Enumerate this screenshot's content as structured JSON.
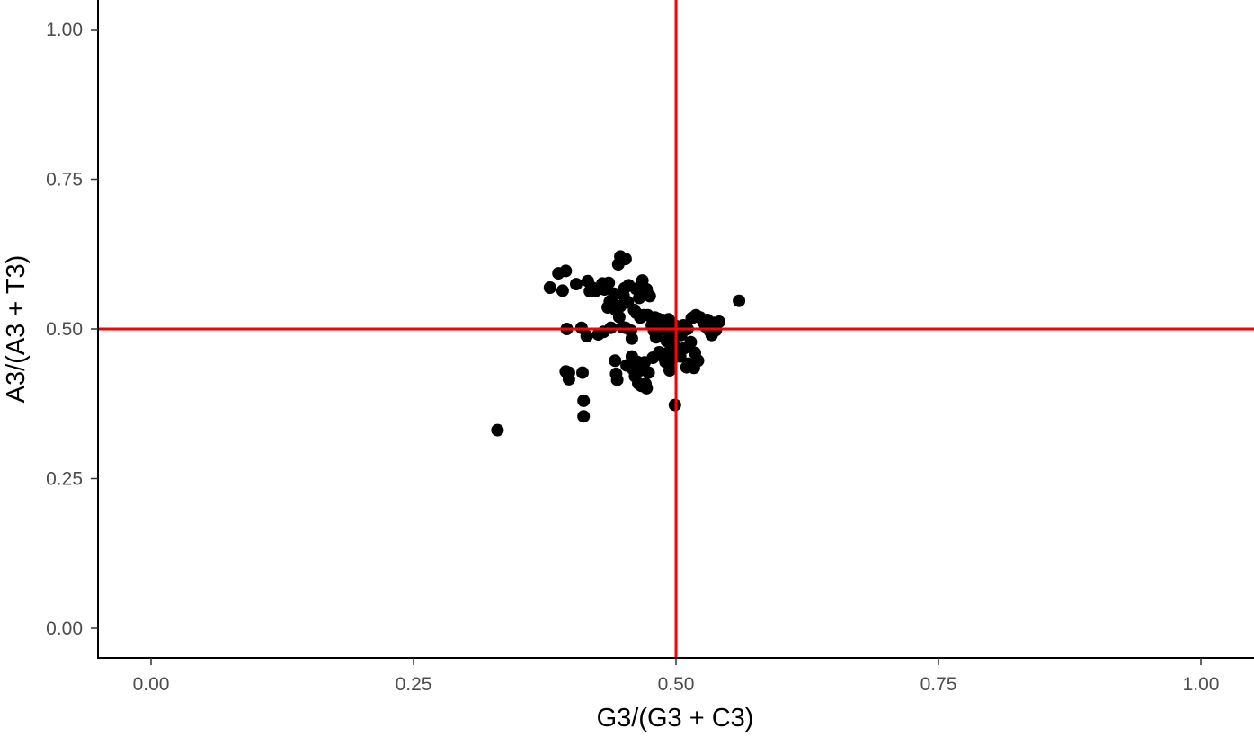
{
  "chart_data": {
    "type": "scatter",
    "title": "",
    "xlabel": "G3/(G3 + C3)",
    "ylabel": "A3/(A3 + T3)",
    "xlim": [
      -0.1,
      1.05
    ],
    "ylim": [
      -0.1,
      1.1
    ],
    "x_ticks": [
      0,
      0.25,
      0.5,
      0.75,
      1
    ],
    "x_tick_labels": [
      "0.00",
      "0.25",
      "0.50",
      "0.75",
      "1.00"
    ],
    "y_ticks": [
      0,
      0.25,
      0.5,
      0.75,
      1
    ],
    "y_tick_labels": [
      "0.00",
      "0.25",
      "0.50",
      "0.75",
      "1.00"
    ],
    "grid": false,
    "legend": "none",
    "point_color": "#000000",
    "reference_line_color": "#ff0000",
    "reference_lines": {
      "vertical_x": 0.5,
      "horizontal_y": 0.5
    },
    "points": [
      [
        0.33,
        0.331
      ],
      [
        0.38,
        0.569
      ],
      [
        0.388,
        0.593
      ],
      [
        0.392,
        0.564
      ],
      [
        0.395,
        0.597
      ],
      [
        0.396,
        0.5
      ],
      [
        0.395,
        0.429
      ],
      [
        0.398,
        0.416
      ],
      [
        0.398,
        0.427
      ],
      [
        0.405,
        0.575
      ],
      [
        0.41,
        0.502
      ],
      [
        0.411,
        0.427
      ],
      [
        0.412,
        0.38
      ],
      [
        0.412,
        0.354
      ],
      [
        0.415,
        0.488
      ],
      [
        0.416,
        0.58
      ],
      [
        0.418,
        0.563
      ],
      [
        0.42,
        0.569
      ],
      [
        0.424,
        0.564
      ],
      [
        0.426,
        0.491
      ],
      [
        0.43,
        0.576
      ],
      [
        0.431,
        0.495
      ],
      [
        0.432,
        0.566
      ],
      [
        0.435,
        0.536
      ],
      [
        0.436,
        0.577
      ],
      [
        0.437,
        0.546
      ],
      [
        0.438,
        0.502
      ],
      [
        0.44,
        0.543
      ],
      [
        0.441,
        0.559
      ],
      [
        0.442,
        0.447
      ],
      [
        0.443,
        0.531
      ],
      [
        0.443,
        0.425
      ],
      [
        0.444,
        0.415
      ],
      [
        0.445,
        0.608
      ],
      [
        0.446,
        0.52
      ],
      [
        0.447,
        0.621
      ],
      [
        0.447,
        0.538
      ],
      [
        0.449,
        0.503
      ],
      [
        0.45,
        0.556
      ],
      [
        0.451,
        0.568
      ],
      [
        0.452,
        0.617
      ],
      [
        0.452,
        0.502
      ],
      [
        0.453,
        0.439
      ],
      [
        0.454,
        0.545
      ],
      [
        0.455,
        0.573
      ],
      [
        0.457,
        0.497
      ],
      [
        0.458,
        0.484
      ],
      [
        0.458,
        0.454
      ],
      [
        0.459,
        0.433
      ],
      [
        0.46,
        0.532
      ],
      [
        0.461,
        0.421
      ],
      [
        0.462,
        0.567
      ],
      [
        0.462,
        0.527
      ],
      [
        0.463,
        0.445
      ],
      [
        0.464,
        0.409
      ],
      [
        0.465,
        0.552
      ],
      [
        0.466,
        0.519
      ],
      [
        0.466,
        0.431
      ],
      [
        0.467,
        0.405
      ],
      [
        0.468,
        0.581
      ],
      [
        0.469,
        0.523
      ],
      [
        0.47,
        0.444
      ],
      [
        0.471,
        0.408
      ],
      [
        0.472,
        0.566
      ],
      [
        0.472,
        0.401
      ],
      [
        0.473,
        0.523
      ],
      [
        0.474,
        0.427
      ],
      [
        0.475,
        0.555
      ],
      [
        0.477,
        0.506
      ],
      [
        0.478,
        0.452
      ],
      [
        0.479,
        0.497
      ],
      [
        0.48,
        0.519
      ],
      [
        0.481,
        0.486
      ],
      [
        0.483,
        0.517
      ],
      [
        0.484,
        0.461
      ],
      [
        0.486,
        0.499
      ],
      [
        0.487,
        0.515
      ],
      [
        0.488,
        0.453
      ],
      [
        0.489,
        0.51
      ],
      [
        0.49,
        0.445
      ],
      [
        0.491,
        0.48
      ],
      [
        0.492,
        0.46
      ],
      [
        0.493,
        0.516
      ],
      [
        0.494,
        0.431
      ],
      [
        0.495,
        0.494
      ],
      [
        0.496,
        0.448
      ],
      [
        0.497,
        0.49
      ],
      [
        0.498,
        0.474
      ],
      [
        0.499,
        0.373
      ],
      [
        0.5,
        0.505
      ],
      [
        0.501,
        0.461
      ],
      [
        0.503,
        0.5
      ],
      [
        0.504,
        0.454
      ],
      [
        0.505,
        0.49
      ],
      [
        0.507,
        0.506
      ],
      [
        0.508,
        0.468
      ],
      [
        0.51,
        0.436
      ],
      [
        0.511,
        0.5
      ],
      [
        0.512,
        0.442
      ],
      [
        0.514,
        0.478
      ],
      [
        0.515,
        0.518
      ],
      [
        0.517,
        0.435
      ],
      [
        0.518,
        0.46
      ],
      [
        0.519,
        0.523
      ],
      [
        0.521,
        0.447
      ],
      [
        0.523,
        0.519
      ],
      [
        0.526,
        0.512
      ],
      [
        0.528,
        0.504
      ],
      [
        0.53,
        0.515
      ],
      [
        0.532,
        0.497
      ],
      [
        0.534,
        0.49
      ],
      [
        0.536,
        0.51
      ],
      [
        0.538,
        0.498
      ],
      [
        0.541,
        0.512
      ],
      [
        0.56,
        0.547
      ]
    ]
  }
}
